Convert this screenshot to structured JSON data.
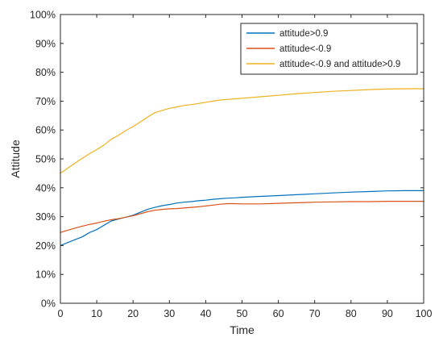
{
  "chart_data": {
    "type": "line",
    "title": "",
    "xlabel": "Time",
    "ylabel": "Attitude",
    "xlim": [
      0,
      100
    ],
    "ylim": [
      0,
      100
    ],
    "xticks": [
      "0",
      "10",
      "20",
      "30",
      "40",
      "50",
      "60",
      "70",
      "80",
      "90",
      "100"
    ],
    "yticks": [
      "0%",
      "10%",
      "20%",
      "30%",
      "40%",
      "50%",
      "60%",
      "70%",
      "80%",
      "90%",
      "100%"
    ],
    "grid": false,
    "legend_position": "top-right",
    "x": [
      0,
      2,
      4,
      6,
      8,
      10,
      12,
      14,
      16,
      18,
      20,
      22,
      24,
      26,
      28,
      30,
      32,
      34,
      36,
      38,
      40,
      42,
      44,
      46,
      48,
      50,
      55,
      60,
      65,
      70,
      75,
      80,
      85,
      90,
      95,
      100
    ],
    "series": [
      {
        "name": "attitude>0.9",
        "color": "#0072BD",
        "values": [
          20,
          21,
          22,
          23,
          24.5,
          25.5,
          27,
          28.5,
          29.2,
          29.8,
          30.5,
          31.5,
          32.5,
          33.2,
          33.8,
          34.2,
          34.7,
          35.0,
          35.2,
          35.5,
          35.7,
          36.0,
          36.2,
          36.4,
          36.5,
          36.7,
          37.0,
          37.3,
          37.6,
          37.9,
          38.2,
          38.5,
          38.7,
          38.9,
          39.0,
          39.0
        ]
      },
      {
        "name": "attitude<-0.9",
        "color": "#D95319",
        "values": [
          24.5,
          25.3,
          26,
          26.7,
          27.3,
          27.8,
          28.4,
          28.9,
          29.3,
          29.8,
          30.3,
          31.0,
          31.7,
          32.2,
          32.5,
          32.7,
          32.8,
          33.0,
          33.2,
          33.4,
          33.7,
          34.0,
          34.3,
          34.5,
          34.5,
          34.4,
          34.4,
          34.6,
          34.8,
          35.0,
          35.1,
          35.2,
          35.2,
          35.3,
          35.3,
          35.3
        ]
      },
      {
        "name": "attitude<-0.9 and attitude>0.9",
        "color": "#EDB120",
        "values": [
          45,
          46.8,
          48.5,
          50.2,
          51.8,
          53.2,
          54.8,
          56.8,
          58.2,
          59.8,
          61.2,
          62.8,
          64.5,
          66.0,
          66.8,
          67.5,
          68.0,
          68.5,
          68.8,
          69.2,
          69.6,
          70.0,
          70.4,
          70.6,
          70.8,
          71.0,
          71.5,
          72.0,
          72.6,
          73.0,
          73.4,
          73.7,
          74.0,
          74.2,
          74.3,
          74.3
        ]
      }
    ]
  }
}
